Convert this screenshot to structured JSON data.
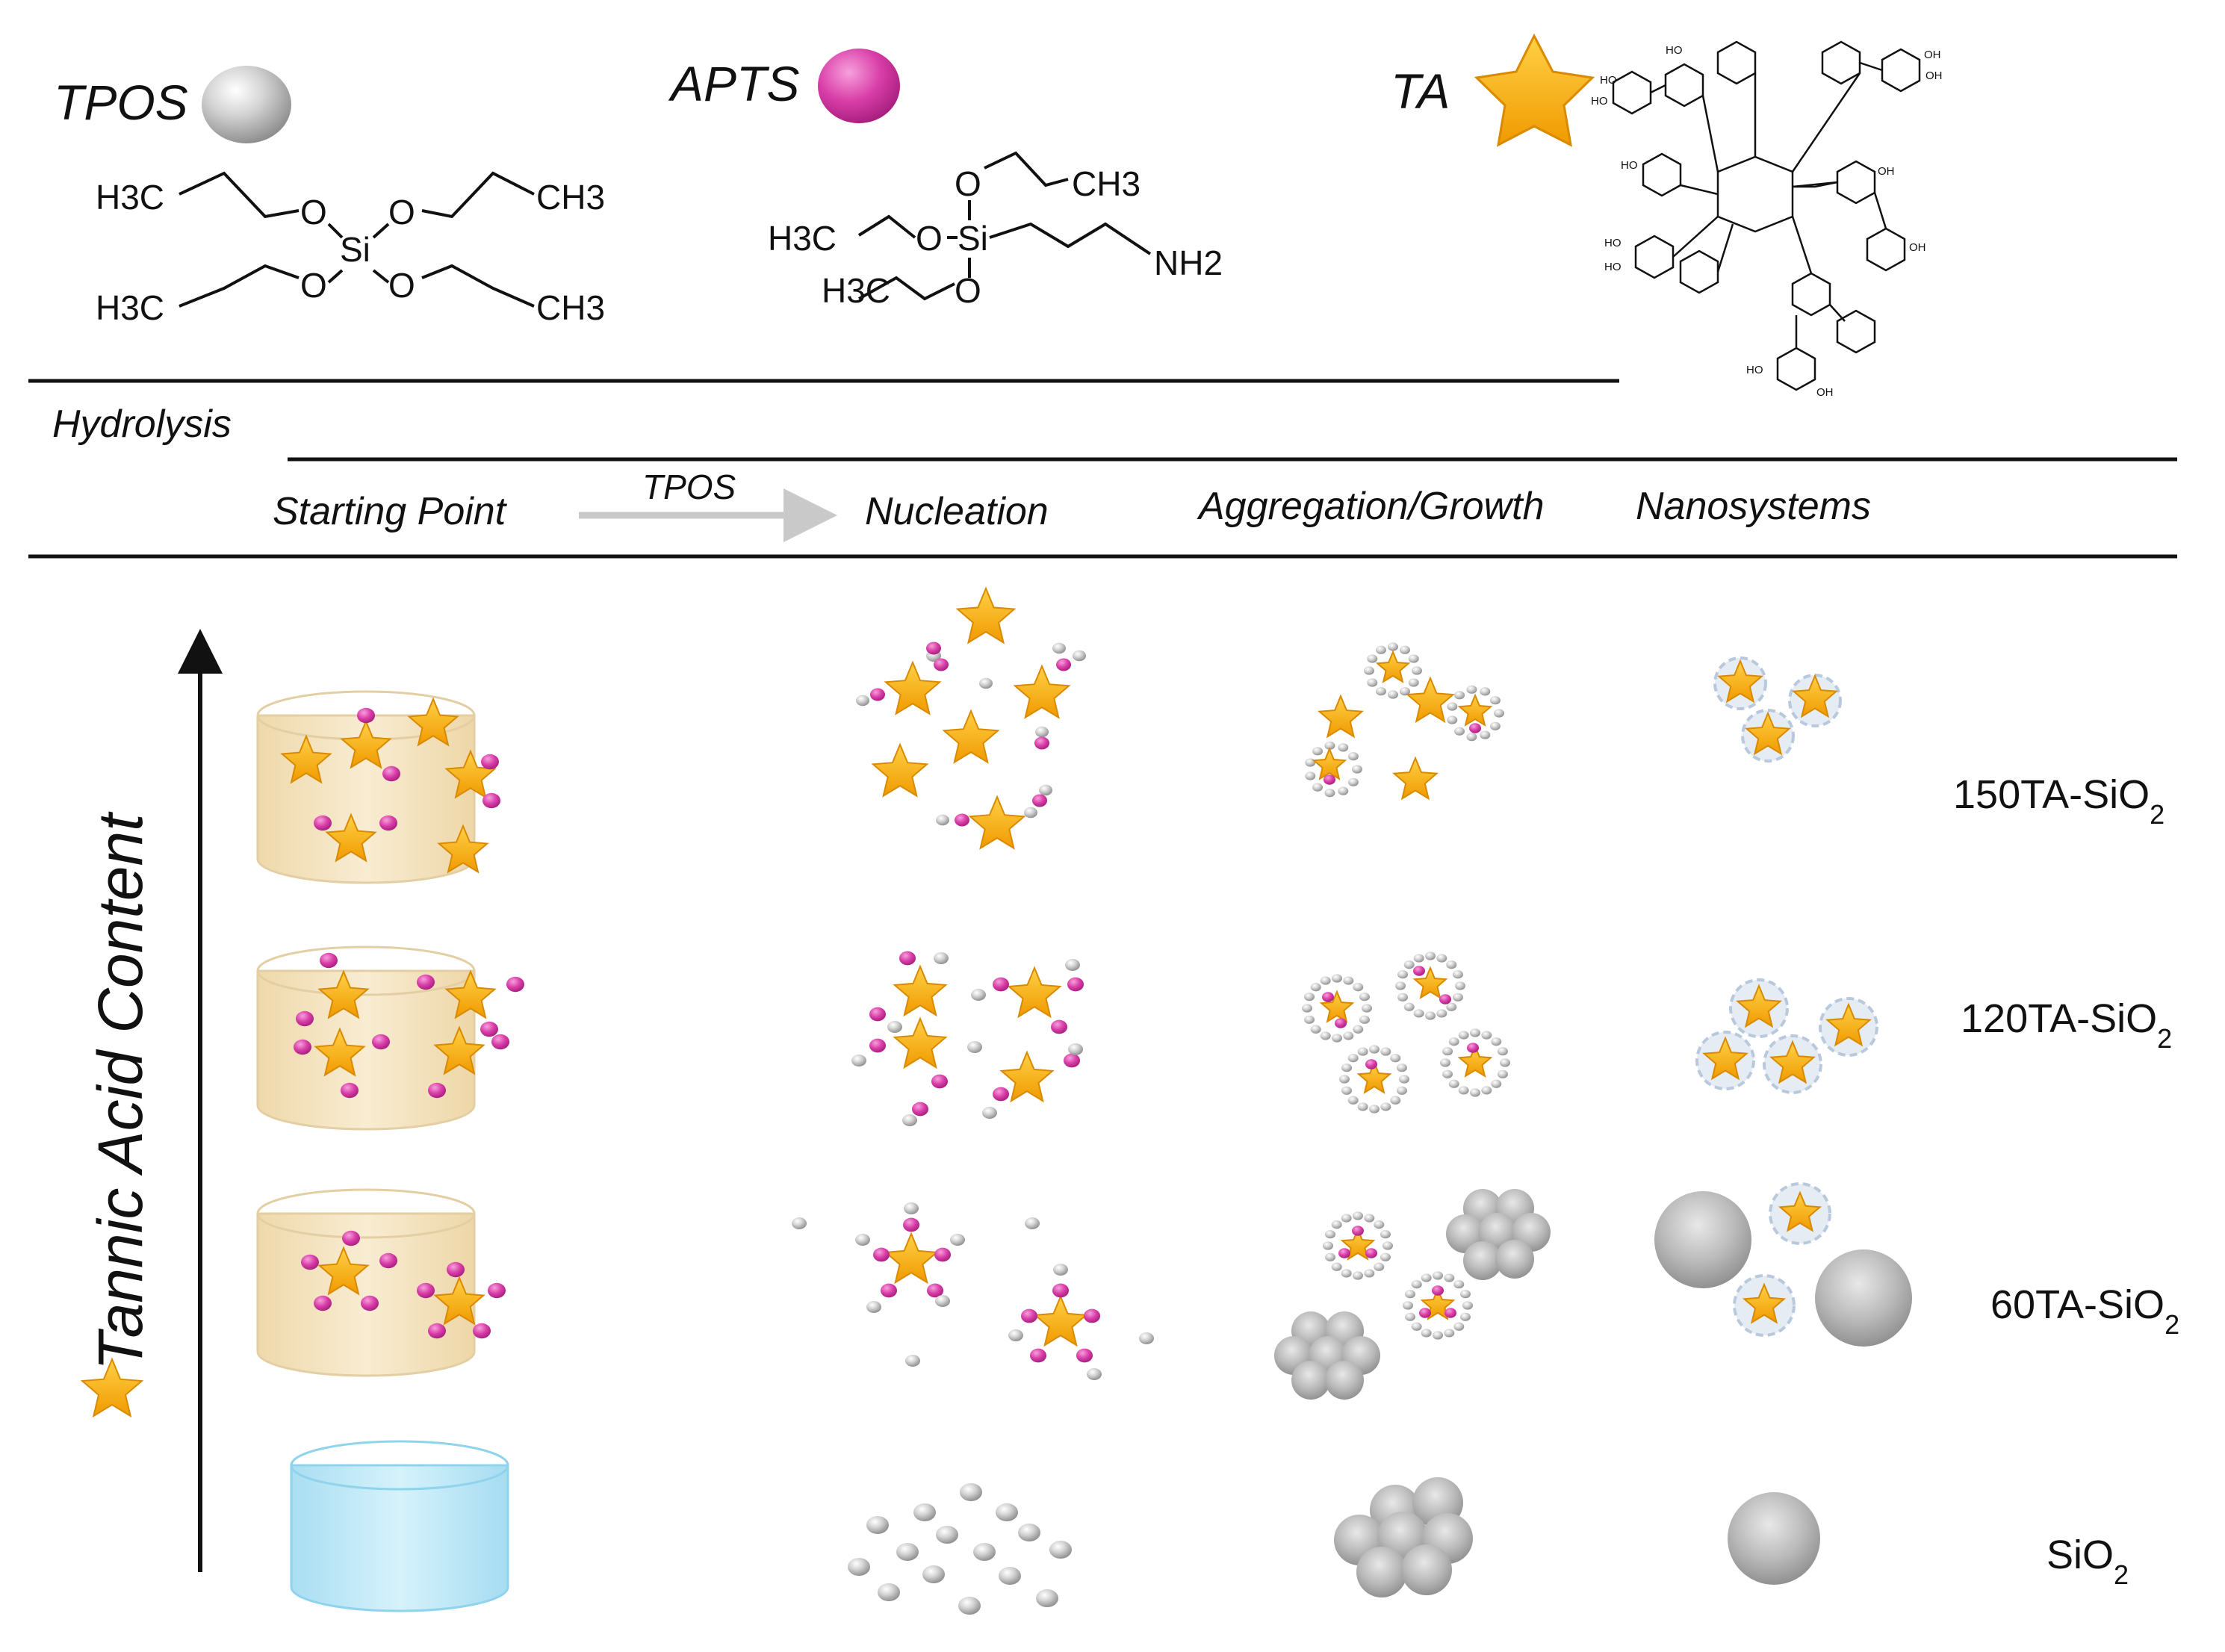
{
  "reagents": {
    "tpos": {
      "label": "TPOS",
      "ch3_left_top": "H3C",
      "ch3_left_bottom": "H3C",
      "ch3_right_top": "CH3",
      "ch3_right_bottom": "CH3",
      "o": "O",
      "si": "Si"
    },
    "apts": {
      "label": "APTS",
      "ch3_top": "CH3",
      "ch3_left": "H3C",
      "ch3_bottom": "H3C",
      "o": "O",
      "si": "Si",
      "nh2": "NH2"
    },
    "ta": {
      "label": "TA",
      "oh": "HO",
      "oh_r": "OH"
    }
  },
  "stages": {
    "hydrolysis": "Hydrolysis",
    "starting_point": "Starting Point",
    "arrow_label": "TPOS",
    "nucleation": "Nucleation",
    "aggregation": "Aggregation/Growth",
    "nanosystems": "Nanosystems"
  },
  "axis": {
    "label": "Tannic Acid Content"
  },
  "rows": [
    {
      "prefix": "150TA-SiO",
      "subscript": "2"
    },
    {
      "prefix": "120TA-SiO",
      "subscript": "2"
    },
    {
      "prefix": "60TA-SiO",
      "subscript": "2"
    },
    {
      "prefix": "SiO",
      "subscript": "2"
    }
  ],
  "colors": {
    "star": "#f5a612",
    "star_edge": "#d98a00",
    "apts_sphere": "#d93ea8",
    "tpos_sphere": "#c8c8c8",
    "beaker_ta": "#f4e3bf",
    "beaker_water": "#bfe8f6",
    "halo": "#b9c9dd"
  },
  "icons": [
    "star-icon",
    "apts-sphere-icon",
    "tpos-sphere-icon",
    "beaker-icon",
    "arrow-icon"
  ]
}
